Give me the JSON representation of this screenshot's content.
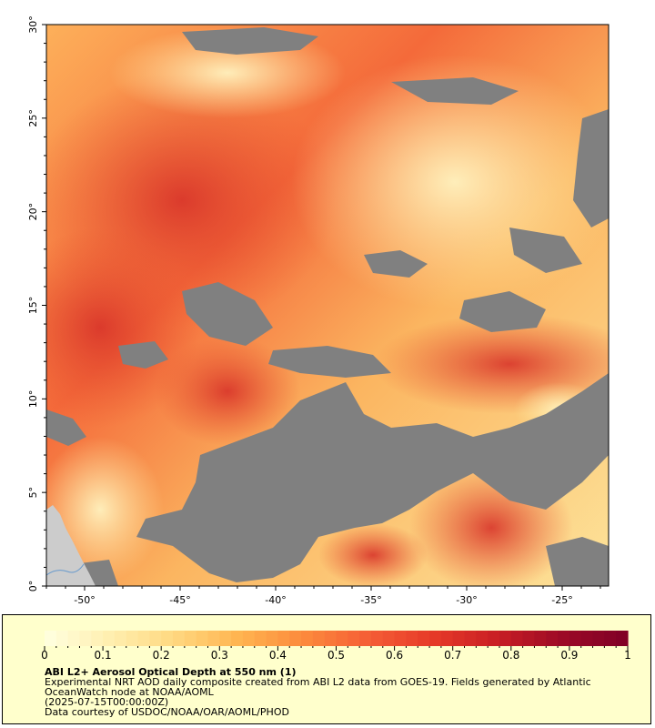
{
  "map": {
    "lat_labels": [
      "0°",
      "5°",
      "10°",
      "15°",
      "20°",
      "25°",
      "30°"
    ],
    "lon_labels": [
      "-50°",
      "-45°",
      "-40°",
      "-35°",
      "-30°",
      "-25°"
    ],
    "colors": {
      "no_data": "#808080",
      "land": "#cccccc",
      "river": "#6699cc"
    }
  },
  "legend": {
    "title": "ABI L2+ Aerosol Optical Depth at 550 nm (1)",
    "description": "Experimental NRT AOD daily composite created from ABI L2 data from GOES-19. Fields generated by Atlantic OceanWatch node at NOAA/AOML",
    "timestamp": "(2025-07-15T00:00:00Z)",
    "credit": "Data courtesy of USDOC/NOAA/OAR/AOML/PHOD",
    "ticks": [
      "0",
      "0.1",
      "0.2",
      "0.3",
      "0.4",
      "0.5",
      "0.6",
      "0.7",
      "0.8",
      "0.9",
      "1"
    ],
    "range": [
      0,
      1
    ],
    "colormap": [
      "#ffffe0",
      "#ffefb0",
      "#ffd880",
      "#ffb450",
      "#fc8a3c",
      "#f55e36",
      "#e63a28",
      "#c81e24",
      "#9c0a26",
      "#7f0026"
    ]
  }
}
